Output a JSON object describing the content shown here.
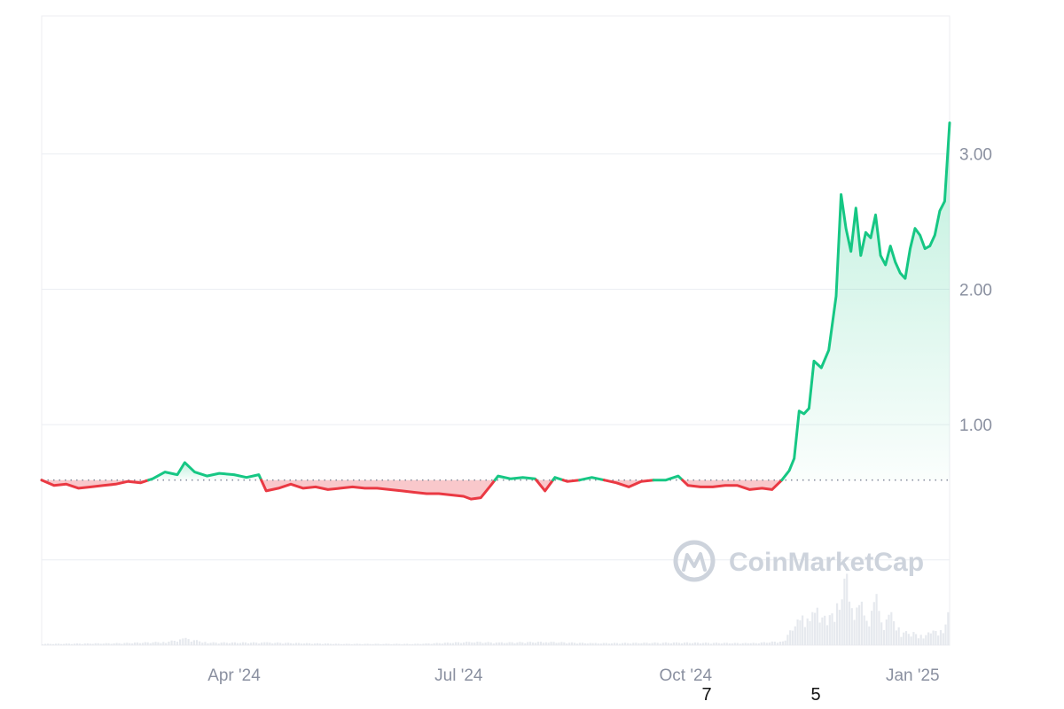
{
  "watermark": {
    "text": "CoinMarketCap",
    "color": "#cdd3dc"
  },
  "stray_labels": [
    "7",
    "5"
  ],
  "chart_data": {
    "type": "line",
    "title": "",
    "xlabel": "",
    "ylabel": "",
    "x_start": "2024-01-14",
    "x_end": "2025-01-16",
    "x_ticks": [
      {
        "date": "2024-04-01",
        "label": "Apr '24"
      },
      {
        "date": "2024-07-01",
        "label": "Jul '24"
      },
      {
        "date": "2024-10-01",
        "label": "Oct '24"
      },
      {
        "date": "2025-01-01",
        "label": "Jan '25"
      }
    ],
    "y_ticks": [
      {
        "value": 1.0,
        "label": "1.00"
      },
      {
        "value": 2.0,
        "label": "2.00"
      },
      {
        "value": 3.0,
        "label": "3.00"
      }
    ],
    "ylim": [
      -0.63,
      4.02
    ],
    "grid": true,
    "legend": "none",
    "baseline": 0.59,
    "colors": {
      "up": "#16c784",
      "down": "#ea3943",
      "grid": "#eceef2",
      "baseline": "#8a90a0"
    },
    "price_series": {
      "name": "",
      "points": [
        [
          "2024-01-14",
          0.59
        ],
        [
          "2024-01-19",
          0.55
        ],
        [
          "2024-01-24",
          0.56
        ],
        [
          "2024-01-29",
          0.53
        ],
        [
          "2024-02-03",
          0.54
        ],
        [
          "2024-02-08",
          0.55
        ],
        [
          "2024-02-13",
          0.56
        ],
        [
          "2024-02-18",
          0.58
        ],
        [
          "2024-02-23",
          0.57
        ],
        [
          "2024-02-28",
          0.6
        ],
        [
          "2024-03-04",
          0.65
        ],
        [
          "2024-03-09",
          0.63
        ],
        [
          "2024-03-12",
          0.72
        ],
        [
          "2024-03-16",
          0.65
        ],
        [
          "2024-03-21",
          0.62
        ],
        [
          "2024-03-26",
          0.64
        ],
        [
          "2024-04-01",
          0.63
        ],
        [
          "2024-04-06",
          0.61
        ],
        [
          "2024-04-11",
          0.63
        ],
        [
          "2024-04-14",
          0.51
        ],
        [
          "2024-04-19",
          0.53
        ],
        [
          "2024-04-24",
          0.56
        ],
        [
          "2024-04-29",
          0.53
        ],
        [
          "2024-05-04",
          0.54
        ],
        [
          "2024-05-09",
          0.52
        ],
        [
          "2024-05-14",
          0.53
        ],
        [
          "2024-05-19",
          0.54
        ],
        [
          "2024-05-24",
          0.53
        ],
        [
          "2024-05-29",
          0.53
        ],
        [
          "2024-06-03",
          0.52
        ],
        [
          "2024-06-08",
          0.51
        ],
        [
          "2024-06-13",
          0.5
        ],
        [
          "2024-06-18",
          0.49
        ],
        [
          "2024-06-23",
          0.49
        ],
        [
          "2024-06-28",
          0.48
        ],
        [
          "2024-07-03",
          0.47
        ],
        [
          "2024-07-06",
          0.45
        ],
        [
          "2024-07-10",
          0.46
        ],
        [
          "2024-07-14",
          0.55
        ],
        [
          "2024-07-17",
          0.62
        ],
        [
          "2024-07-22",
          0.6
        ],
        [
          "2024-07-27",
          0.61
        ],
        [
          "2024-08-01",
          0.6
        ],
        [
          "2024-08-05",
          0.51
        ],
        [
          "2024-08-09",
          0.61
        ],
        [
          "2024-08-14",
          0.58
        ],
        [
          "2024-08-19",
          0.59
        ],
        [
          "2024-08-24",
          0.61
        ],
        [
          "2024-08-29",
          0.59
        ],
        [
          "2024-09-03",
          0.57
        ],
        [
          "2024-09-08",
          0.54
        ],
        [
          "2024-09-13",
          0.58
        ],
        [
          "2024-09-18",
          0.59
        ],
        [
          "2024-09-23",
          0.59
        ],
        [
          "2024-09-28",
          0.62
        ],
        [
          "2024-10-02",
          0.55
        ],
        [
          "2024-10-07",
          0.54
        ],
        [
          "2024-10-12",
          0.54
        ],
        [
          "2024-10-17",
          0.55
        ],
        [
          "2024-10-22",
          0.55
        ],
        [
          "2024-10-27",
          0.52
        ],
        [
          "2024-11-01",
          0.53
        ],
        [
          "2024-11-05",
          0.52
        ],
        [
          "2024-11-09",
          0.59
        ],
        [
          "2024-11-12",
          0.66
        ],
        [
          "2024-11-14",
          0.75
        ],
        [
          "2024-11-16",
          1.1
        ],
        [
          "2024-11-18",
          1.08
        ],
        [
          "2024-11-20",
          1.12
        ],
        [
          "2024-11-22",
          1.47
        ],
        [
          "2024-11-25",
          1.42
        ],
        [
          "2024-11-28",
          1.55
        ],
        [
          "2024-12-01",
          1.95
        ],
        [
          "2024-12-03",
          2.7
        ],
        [
          "2024-12-05",
          2.45
        ],
        [
          "2024-12-07",
          2.28
        ],
        [
          "2024-12-09",
          2.6
        ],
        [
          "2024-12-11",
          2.25
        ],
        [
          "2024-12-13",
          2.42
        ],
        [
          "2024-12-15",
          2.38
        ],
        [
          "2024-12-17",
          2.55
        ],
        [
          "2024-12-19",
          2.25
        ],
        [
          "2024-12-21",
          2.18
        ],
        [
          "2024-12-23",
          2.32
        ],
        [
          "2024-12-25",
          2.2
        ],
        [
          "2024-12-27",
          2.12
        ],
        [
          "2024-12-29",
          2.08
        ],
        [
          "2024-12-31",
          2.3
        ],
        [
          "2025-01-02",
          2.45
        ],
        [
          "2025-01-04",
          2.4
        ],
        [
          "2025-01-06",
          2.3
        ],
        [
          "2025-01-08",
          2.32
        ],
        [
          "2025-01-10",
          2.4
        ],
        [
          "2025-01-12",
          2.58
        ],
        [
          "2025-01-14",
          2.65
        ],
        [
          "2025-01-16",
          3.23
        ]
      ]
    },
    "volume_series": {
      "name": "",
      "points": [
        [
          "2024-01-14",
          0.02
        ],
        [
          "2024-02-13",
          0.03
        ],
        [
          "2024-03-04",
          0.05
        ],
        [
          "2024-03-12",
          0.1
        ],
        [
          "2024-03-21",
          0.04
        ],
        [
          "2024-04-14",
          0.04
        ],
        [
          "2024-05-14",
          0.02
        ],
        [
          "2024-06-13",
          0.02
        ],
        [
          "2024-07-06",
          0.05
        ],
        [
          "2024-07-17",
          0.04
        ],
        [
          "2024-08-05",
          0.05
        ],
        [
          "2024-08-24",
          0.03
        ],
        [
          "2024-09-28",
          0.04
        ],
        [
          "2024-10-27",
          0.03
        ],
        [
          "2024-11-09",
          0.06
        ],
        [
          "2024-11-14",
          0.3
        ],
        [
          "2024-11-17",
          0.45
        ],
        [
          "2024-11-20",
          0.4
        ],
        [
          "2024-11-23",
          0.55
        ],
        [
          "2024-11-27",
          0.35
        ],
        [
          "2024-12-01",
          0.6
        ],
        [
          "2024-12-03",
          0.85
        ],
        [
          "2024-12-05",
          1.0
        ],
        [
          "2024-12-08",
          0.5
        ],
        [
          "2024-12-11",
          0.6
        ],
        [
          "2024-12-14",
          0.4
        ],
        [
          "2024-12-17",
          0.7
        ],
        [
          "2024-12-20",
          0.35
        ],
        [
          "2024-12-23",
          0.45
        ],
        [
          "2024-12-27",
          0.2
        ],
        [
          "2025-01-01",
          0.18
        ],
        [
          "2025-01-05",
          0.15
        ],
        [
          "2025-01-09",
          0.2
        ],
        [
          "2025-01-13",
          0.25
        ],
        [
          "2025-01-16",
          0.55
        ]
      ]
    }
  }
}
